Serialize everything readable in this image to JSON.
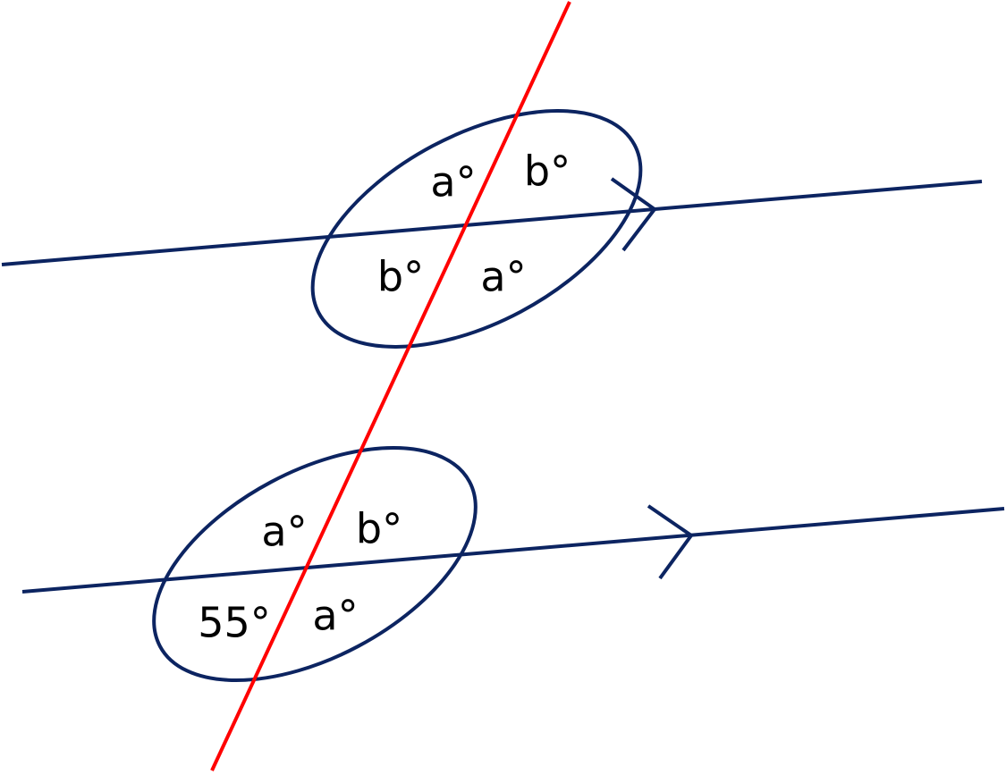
{
  "colors": {
    "parallel_lines": "#0c2461",
    "transversal": "#ff0000",
    "text": "#000000"
  },
  "top_intersection": {
    "upper_left": "a°",
    "upper_right": "b°",
    "lower_left": "b°",
    "lower_right": "a°"
  },
  "bottom_intersection": {
    "upper_left": "a°",
    "upper_right": "b°",
    "lower_left": "55°",
    "lower_right": "a°"
  }
}
